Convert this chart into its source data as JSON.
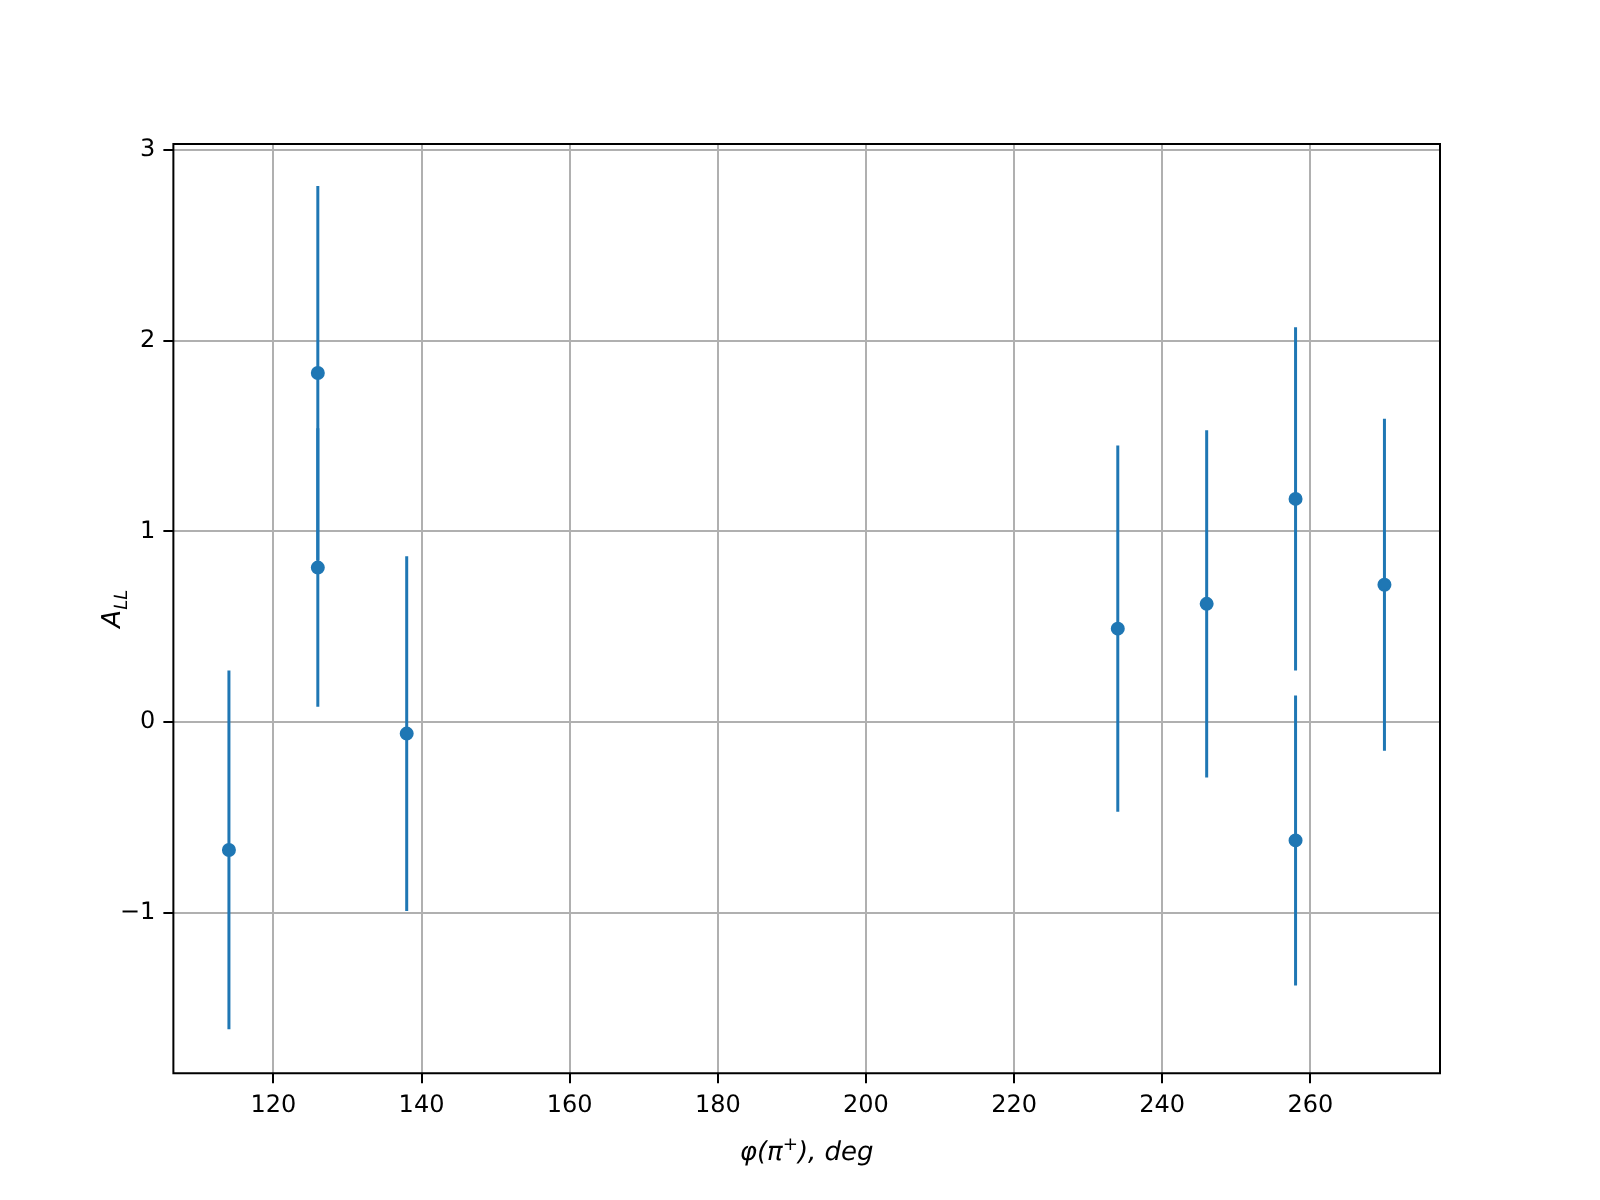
{
  "chart_data": {
    "type": "scatter",
    "xlabel": "φ(π$^{+}$), deg",
    "ylabel": "A$_{LL}$",
    "x": [
      114,
      126,
      126,
      138,
      234,
      246,
      258,
      258,
      270
    ],
    "values": [
      -0.67,
      1.83,
      0.81,
      -0.06,
      0.49,
      0.62,
      1.17,
      -0.62,
      0.72
    ],
    "errors": [
      0.94,
      0.98,
      0.73,
      0.93,
      0.96,
      0.91,
      0.9,
      0.76,
      0.87
    ],
    "color": "#1f77b4",
    "marker": "circle",
    "grid": true,
    "xlim": [
      106.5,
      277.5
    ],
    "xticks": [
      120,
      140,
      160,
      180,
      200,
      220,
      240,
      260
    ],
    "ylim": [
      -1.84,
      3.03
    ],
    "yticks": [
      -1,
      0,
      1,
      2,
      3
    ]
  }
}
